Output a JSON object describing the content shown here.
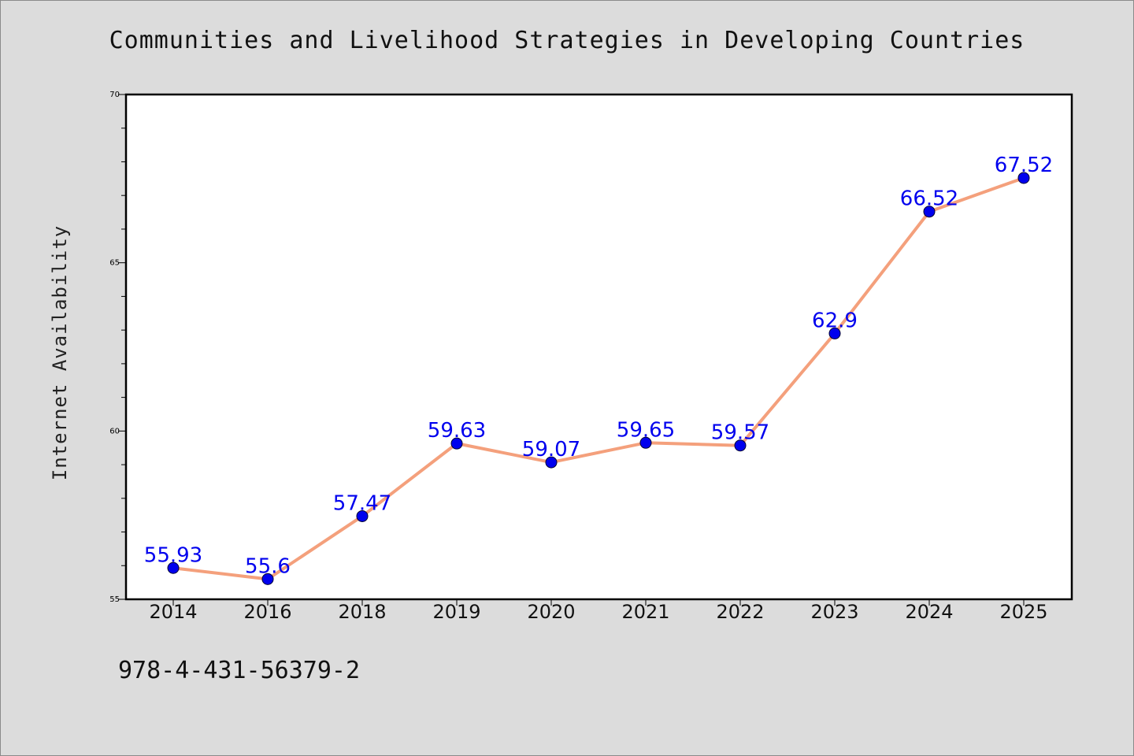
{
  "chart_data": {
    "type": "line",
    "title": "Communities and Livelihood Strategies in Developing Countries",
    "xlabel": "",
    "ylabel": "Internet Availability",
    "ylim": [
      55,
      70
    ],
    "yticks": [
      "55",
      "60",
      "65",
      "70"
    ],
    "categories": [
      "2014",
      "2016",
      "2018",
      "2019",
      "2020",
      "2021",
      "2022",
      "2023",
      "2024",
      "2025"
    ],
    "series": [
      {
        "values": [
          55.93,
          55.6,
          57.47,
          59.63,
          59.07,
          59.65,
          59.57,
          62.9,
          66.52,
          67.52
        ],
        "labels": [
          "55.93",
          "55.6",
          "57.47",
          "59.63",
          "59.07",
          "59.65",
          "59.57",
          "62.9",
          "66.52",
          "67.52"
        ],
        "line_color": "#f4a07c",
        "marker_color": "#0000ee",
        "label_color": "#0000ee"
      }
    ],
    "grid": false,
    "legend": "none"
  },
  "footer_text": "978-4-431-56379-2"
}
